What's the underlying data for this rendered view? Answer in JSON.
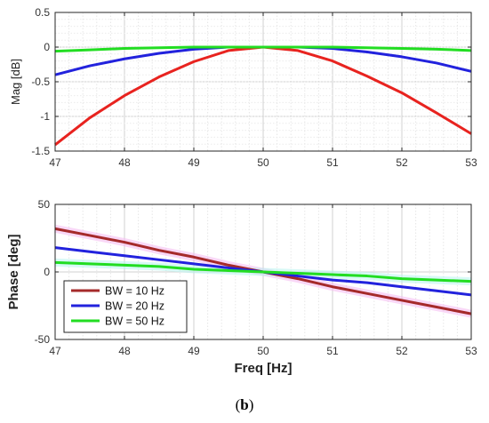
{
  "caption": {
    "open": "(",
    "label": "b",
    "close": ")"
  },
  "chart_data": [
    {
      "type": "line",
      "ylabel": "Mag [dB]",
      "xlabel": "",
      "xlim": [
        47,
        53
      ],
      "ylim": [
        -1.5,
        0.5
      ],
      "xticks": [
        "47",
        "48",
        "49",
        "50",
        "51",
        "52",
        "53"
      ],
      "yticks": [
        "0.5",
        "0",
        "-0.5",
        "-1",
        "-1.5"
      ],
      "grid": true,
      "x": [
        47,
        47.5,
        48,
        48.5,
        49,
        49.5,
        50,
        50.5,
        51,
        51.5,
        52,
        52.5,
        53
      ],
      "series": [
        {
          "name": "BW = 10 Hz",
          "color": "#e8231f",
          "values": [
            -1.41,
            -1.02,
            -0.7,
            -0.43,
            -0.21,
            -0.05,
            0.0,
            -0.05,
            -0.2,
            -0.42,
            -0.66,
            -0.95,
            -1.25
          ]
        },
        {
          "name": "BW = 20 Hz",
          "color": "#2222dd",
          "values": [
            -0.4,
            -0.27,
            -0.17,
            -0.09,
            -0.03,
            0.0,
            0.0,
            0.0,
            -0.02,
            -0.07,
            -0.14,
            -0.23,
            -0.35
          ]
        },
        {
          "name": "BW = 50 Hz",
          "color": "#22dd22",
          "values": [
            -0.06,
            -0.04,
            -0.02,
            -0.01,
            0.0,
            0.0,
            0.0,
            0.0,
            0.0,
            -0.01,
            -0.02,
            -0.03,
            -0.05
          ]
        }
      ]
    },
    {
      "type": "line",
      "ylabel": "Phase [deg]",
      "xlabel": "Freq [Hz]",
      "xlim": [
        47,
        53
      ],
      "ylim": [
        -50,
        50
      ],
      "xticks": [
        "47",
        "48",
        "49",
        "50",
        "51",
        "52",
        "53"
      ],
      "yticks": [
        "50",
        "0",
        "-50"
      ],
      "grid": true,
      "legend_position": "lower-left",
      "x": [
        47,
        47.5,
        48,
        48.5,
        49,
        49.5,
        50,
        50.5,
        51,
        51.5,
        52,
        52.5,
        53
      ],
      "series": [
        {
          "name": "BW = 10 Hz",
          "color": "#a52a2a",
          "values": [
            32,
            27,
            22,
            16,
            11,
            5,
            0,
            -5,
            -11,
            -16,
            -21,
            -26,
            -31
          ]
        },
        {
          "name": "BW = 20 Hz",
          "color": "#2222dd",
          "values": [
            18,
            15,
            12,
            9,
            6,
            3,
            0,
            -3,
            -6,
            -8,
            -11,
            -14,
            -17
          ]
        },
        {
          "name": "BW = 50 Hz",
          "color": "#22dd22",
          "values": [
            7,
            6,
            5,
            4,
            2,
            1,
            0,
            -1,
            -2,
            -3,
            -5,
            -6,
            -7
          ]
        }
      ],
      "legend": [
        "BW = 10 Hz",
        "BW = 20 Hz",
        "BW = 50 Hz"
      ]
    }
  ]
}
